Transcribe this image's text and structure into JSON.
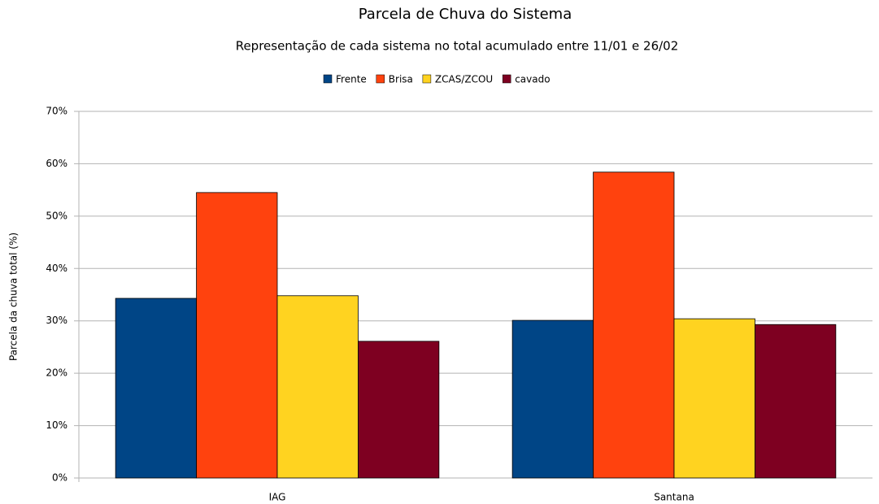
{
  "chart_data": {
    "type": "bar",
    "title": "Parcela de Chuva do Sistema",
    "subtitle": "Representação de cada sistema no total acumulado entre 11/01 e 26/02",
    "y_label": "Parcela da chuva total (%)",
    "categories": [
      "IAG",
      "Santana"
    ],
    "series": [
      {
        "name": "Frente",
        "color": "#004586",
        "values": [
          34.3,
          30.1
        ]
      },
      {
        "name": "Brisa",
        "color": "#ff420e",
        "values": [
          54.5,
          58.4
        ]
      },
      {
        "name": "ZCAS/ZCOU",
        "color": "#ffd320",
        "values": [
          34.8,
          30.4
        ]
      },
      {
        "name": "cavado",
        "color": "#7e0021",
        "values": [
          26.1,
          29.3
        ]
      }
    ],
    "ylim": [
      0,
      70
    ],
    "yticks": [
      {
        "value": 0,
        "label": "0%"
      },
      {
        "value": 10,
        "label": "10%"
      },
      {
        "value": 20,
        "label": "20%"
      },
      {
        "value": 30,
        "label": "30%"
      },
      {
        "value": 40,
        "label": "40%"
      },
      {
        "value": 50,
        "label": "50%"
      },
      {
        "value": 60,
        "label": "60%"
      },
      {
        "value": 70,
        "label": "70%"
      }
    ],
    "grid": true,
    "legend": "top"
  }
}
